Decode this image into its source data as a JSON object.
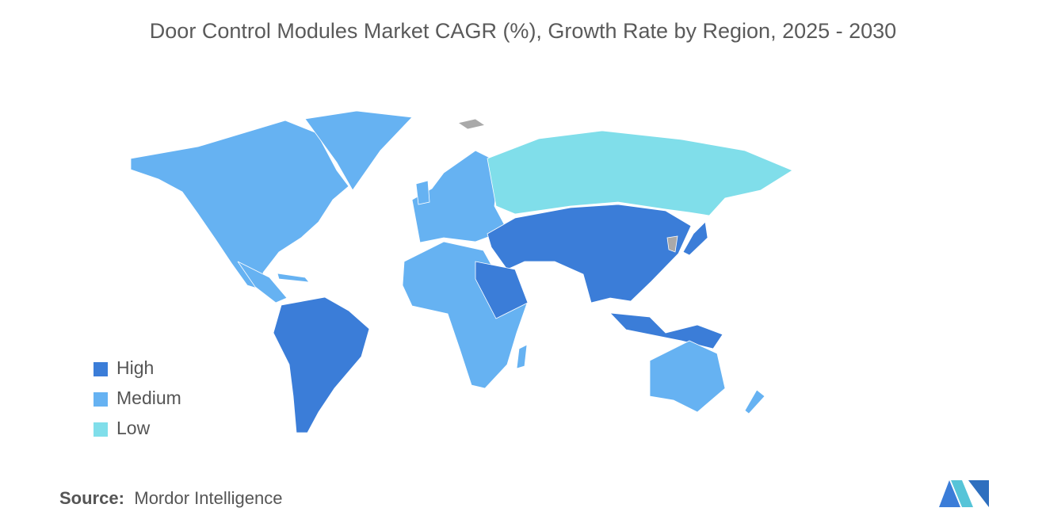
{
  "title": "Door Control Modules Market CAGR (%), Growth Rate by Region, 2025 - 2030",
  "legend": [
    {
      "label": "High",
      "color": "#3b7dd8"
    },
    {
      "label": "Medium",
      "color": "#66b2f2"
    },
    {
      "label": "Low",
      "color": "#80deea"
    }
  ],
  "source": {
    "label": "Source:",
    "text": "Mordor Intelligence"
  }
}
